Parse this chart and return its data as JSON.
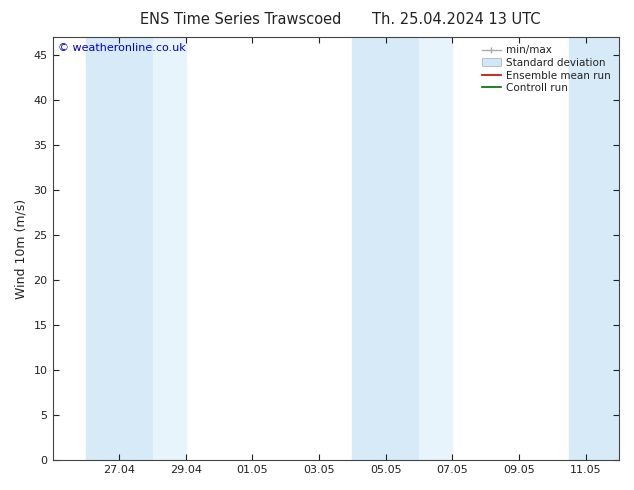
{
  "title_left": "ENS Time Series Trawscoed",
  "title_right": "Th. 25.04.2024 13 UTC",
  "ylabel": "Wind 10m (m/s)",
  "watermark": "© weatheronline.co.uk",
  "watermark_color": "#0000cc",
  "ylim": [
    0,
    47
  ],
  "yticks": [
    0,
    5,
    10,
    15,
    20,
    25,
    30,
    35,
    40,
    45
  ],
  "xtick_labels": [
    "27.04",
    "29.04",
    "01.05",
    "03.05",
    "05.05",
    "07.05",
    "09.05",
    "11.05"
  ],
  "xtick_positions": [
    2,
    4,
    6,
    8,
    10,
    12,
    14,
    16
  ],
  "x_min": 0.0,
  "x_max": 17.0,
  "shaded_bands": [
    {
      "x_start": 1.0,
      "x_end": 3.0,
      "color": "#d6eaf8"
    },
    {
      "x_start": 3.0,
      "x_end": 4.0,
      "color": "#e8f4fb"
    },
    {
      "x_start": 9.0,
      "x_end": 11.0,
      "color": "#d6eaf8"
    },
    {
      "x_start": 11.0,
      "x_end": 12.0,
      "color": "#e8f4fb"
    },
    {
      "x_start": 15.5,
      "x_end": 17.0,
      "color": "#d6eaf8"
    }
  ],
  "bg_color": "#ffffff",
  "plot_bg_color": "#ffffff",
  "font_color": "#222222",
  "title_fontsize": 10.5,
  "ylabel_fontsize": 9,
  "tick_fontsize": 8,
  "watermark_fontsize": 8,
  "legend_fontsize": 7.5,
  "legend_text_color": "#222222",
  "minmax_color": "#aaaaaa",
  "std_color": "#d0e8f5",
  "ensemble_color": "#cc0000",
  "control_color": "#006600"
}
